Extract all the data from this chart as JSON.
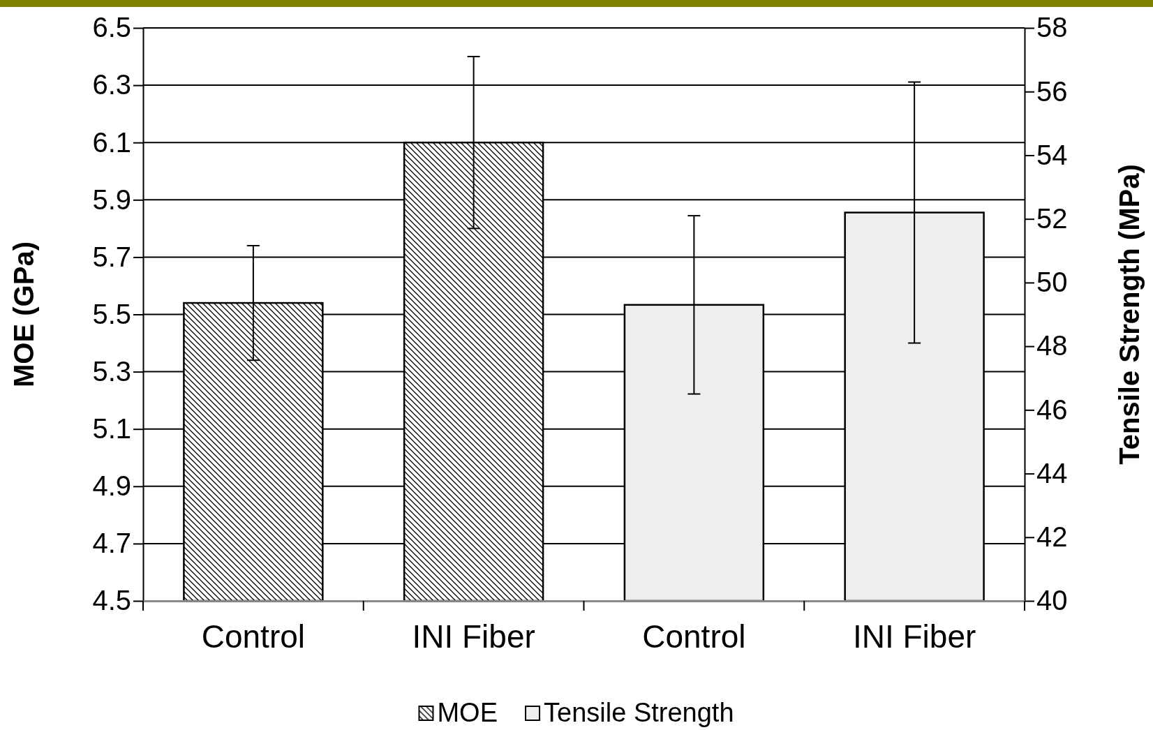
{
  "chart_data": {
    "type": "bar",
    "categories": [
      "Control",
      "INI Fiber",
      "Control",
      "INI Fiber"
    ],
    "ylabel": "MOE  (GPa)",
    "y2label": "Tensile Strength  (MPa)",
    "ylim": [
      4.5,
      6.5
    ],
    "yticks": [
      4.5,
      4.7,
      4.9,
      5.1,
      5.3,
      5.5,
      5.7,
      5.9,
      6.1,
      6.3,
      6.5
    ],
    "y2lim": [
      40,
      58
    ],
    "y2ticks": [
      40,
      42,
      44,
      46,
      48,
      50,
      52,
      54,
      56,
      58
    ],
    "grid": "y",
    "legend": "bottom",
    "series": [
      {
        "name": "MOE",
        "color": "#000000",
        "values": [
          5.54,
          6.1,
          null,
          null
        ],
        "errors": [
          0.2,
          0.3,
          null,
          null
        ]
      },
      {
        "name": "Tensile Strength",
        "color": "#eeeeee",
        "axis": "y2",
        "values": [
          null,
          null,
          49.3,
          52.2
        ],
        "errors": [
          null,
          null,
          2.8,
          4.1
        ]
      }
    ]
  }
}
